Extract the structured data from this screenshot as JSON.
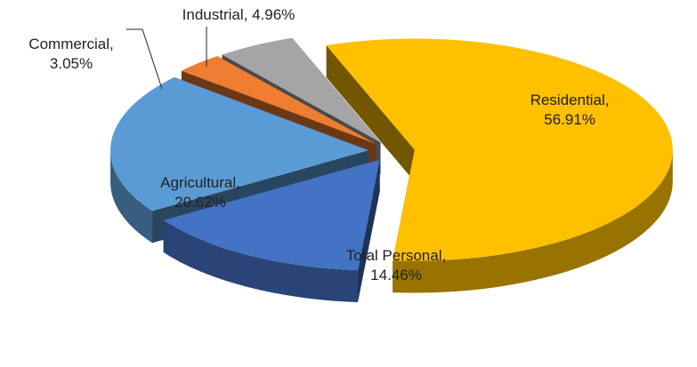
{
  "chart_data": {
    "type": "pie",
    "values": [
      56.91,
      14.46,
      20.62,
      3.05,
      4.96
    ],
    "value_labels": [
      "Residential, 56.91%",
      "Total Personal, 14.46%",
      "Agricultural, 20.62%",
      "Commercial, 3.05%",
      "Industrial, 4.96%"
    ],
    "colors": [
      "#ffc000",
      "#4472c4",
      "#5b9bd5",
      "#ed7d31",
      "#a5a5a5"
    ],
    "exploded": true,
    "three_d": true
  }
}
